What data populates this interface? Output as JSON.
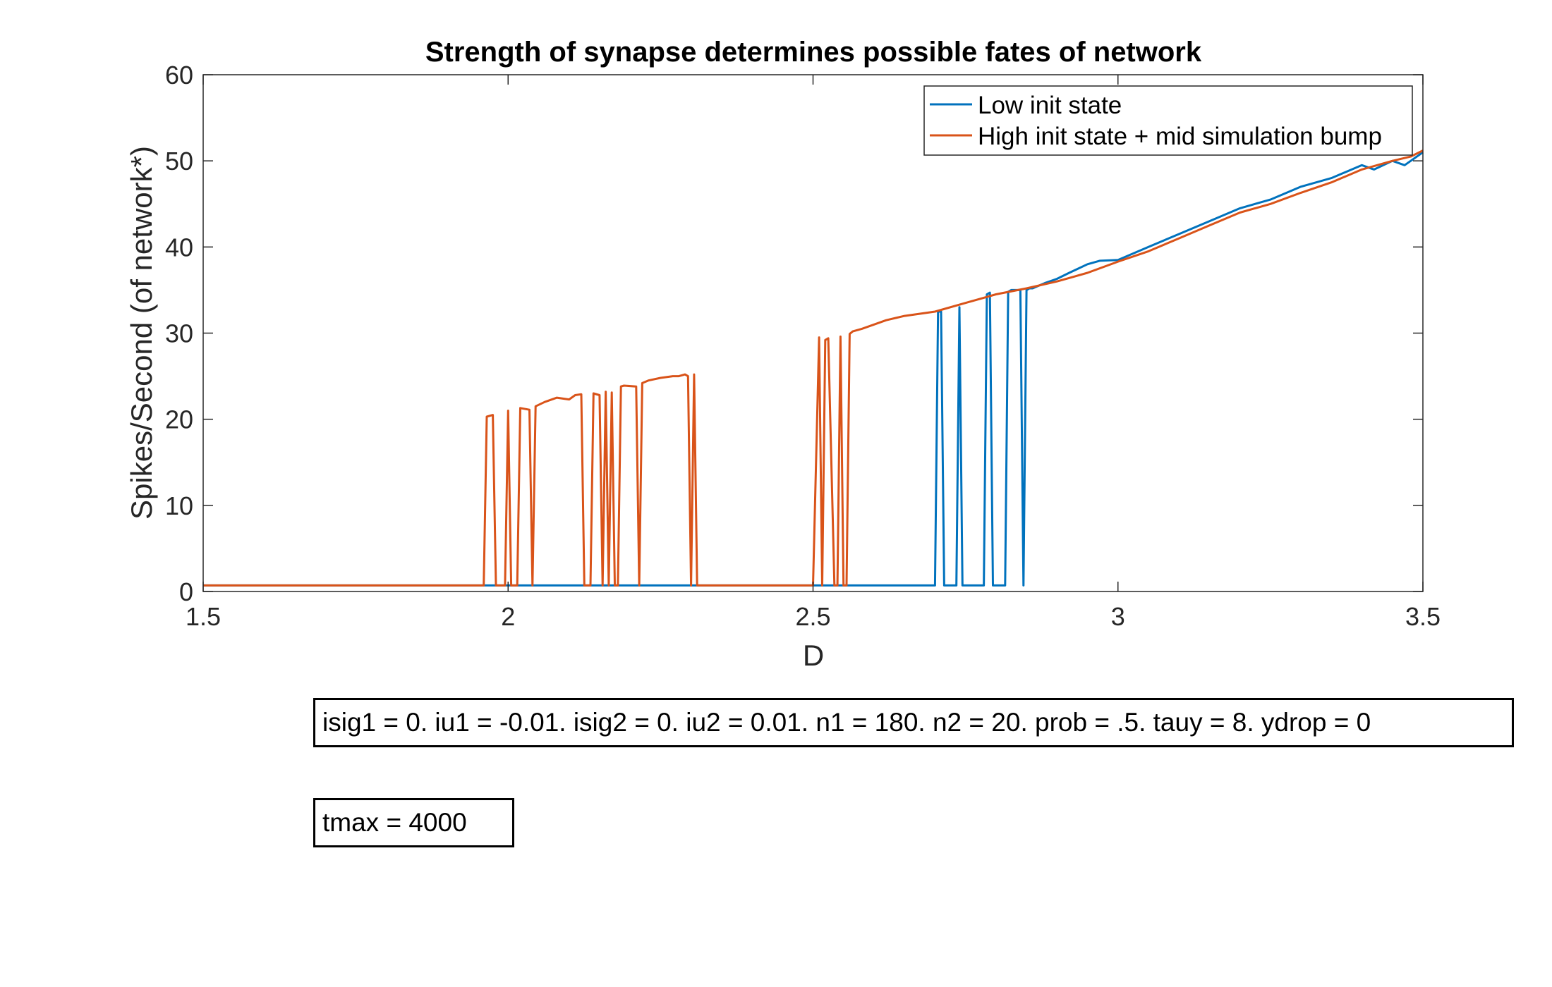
{
  "chart_data": {
    "type": "line",
    "title": "Strength of synapse determines possible fates of network",
    "xlabel": "D",
    "ylabel": "Spikes/Second (of network*)",
    "xlim": [
      1.5,
      3.5
    ],
    "ylim": [
      0,
      60
    ],
    "xticks": [
      1.5,
      2,
      2.5,
      3,
      3.5
    ],
    "xtick_labels": [
      "1.5",
      "2",
      "2.5",
      "3",
      "3.5"
    ],
    "yticks": [
      0,
      10,
      20,
      30,
      40,
      50,
      60
    ],
    "ytick_labels": [
      "0",
      "10",
      "20",
      "30",
      "40",
      "50",
      "60"
    ],
    "grid": false,
    "legend_position": "top-right",
    "series": [
      {
        "name": "Low init state",
        "color": "#0072BD",
        "x": [
          1.5,
          2.7,
          2.705,
          2.71,
          2.715,
          2.735,
          2.74,
          2.745,
          2.78,
          2.785,
          2.79,
          2.795,
          2.8,
          2.805,
          2.815,
          2.82,
          2.825,
          2.84,
          2.845,
          2.85,
          2.855,
          2.86,
          2.87,
          2.88,
          2.9,
          2.92,
          2.95,
          2.97,
          3.0,
          3.05,
          3.1,
          3.15,
          3.2,
          3.25,
          3.3,
          3.35,
          3.4,
          3.42,
          3.45,
          3.47,
          3.5
        ],
        "y": [
          0.7,
          0.7,
          32.5,
          32.5,
          0.7,
          0.7,
          33,
          0.7,
          0.7,
          34.5,
          34.7,
          0.7,
          0.7,
          0.7,
          0.7,
          34.8,
          35,
          35,
          0.7,
          35,
          35.2,
          35.2,
          35.5,
          35.8,
          36.3,
          37,
          38,
          38.4,
          38.5,
          40,
          41.5,
          43,
          44.5,
          45.5,
          47,
          48,
          49.5,
          49,
          50,
          49.5,
          51
        ]
      },
      {
        "name": "High init state + mid simulation bump",
        "color": "#D95319",
        "x": [
          1.5,
          1.96,
          1.965,
          1.975,
          1.98,
          1.995,
          2.0,
          2.005,
          2.015,
          2.02,
          2.035,
          2.04,
          2.045,
          2.06,
          2.08,
          2.1,
          2.11,
          2.12,
          2.125,
          2.135,
          2.14,
          2.15,
          2.155,
          2.16,
          2.165,
          2.17,
          2.175,
          2.18,
          2.185,
          2.19,
          2.21,
          2.215,
          2.22,
          2.23,
          2.25,
          2.27,
          2.28,
          2.29,
          2.295,
          2.3,
          2.305,
          2.31,
          2.5,
          2.51,
          2.515,
          2.52,
          2.525,
          2.535,
          2.54,
          2.545,
          2.55,
          2.555,
          2.56,
          2.565,
          2.58,
          2.6,
          2.62,
          2.65,
          2.7,
          2.75,
          2.8,
          2.85,
          2.9,
          2.95,
          3.0,
          3.05,
          3.1,
          3.15,
          3.2,
          3.25,
          3.3,
          3.35,
          3.4,
          3.45,
          3.48,
          3.5
        ],
        "y": [
          0.7,
          0.7,
          20.3,
          20.5,
          0.7,
          0.7,
          21,
          0.7,
          0.7,
          21.3,
          21.1,
          0.7,
          21.5,
          22,
          22.5,
          22.3,
          22.8,
          22.9,
          0.7,
          0.7,
          23,
          22.8,
          0.7,
          23.2,
          0.7,
          23.1,
          0.7,
          0.7,
          23.8,
          23.9,
          23.8,
          0.7,
          24.2,
          24.5,
          24.8,
          25,
          25,
          25.2,
          25,
          0.7,
          25.2,
          0.7,
          0.7,
          29.5,
          0.7,
          29.2,
          29.4,
          0.7,
          0.7,
          29.6,
          0.7,
          0.7,
          29.9,
          30.2,
          30.5,
          31,
          31.5,
          32,
          32.5,
          33.5,
          34.5,
          35.2,
          36,
          37,
          38.3,
          39.5,
          41,
          42.5,
          44,
          45,
          46.3,
          47.5,
          49,
          50,
          50.5,
          51.2
        ]
      }
    ]
  },
  "annotations": {
    "params": "isig1 = 0. iu1 = -0.01. isig2 = 0. iu2 = 0.01. n1 = 180. n2 = 20. prob = .5. tauy = 8. ydrop = 0",
    "tmax": "tmax = 4000"
  }
}
